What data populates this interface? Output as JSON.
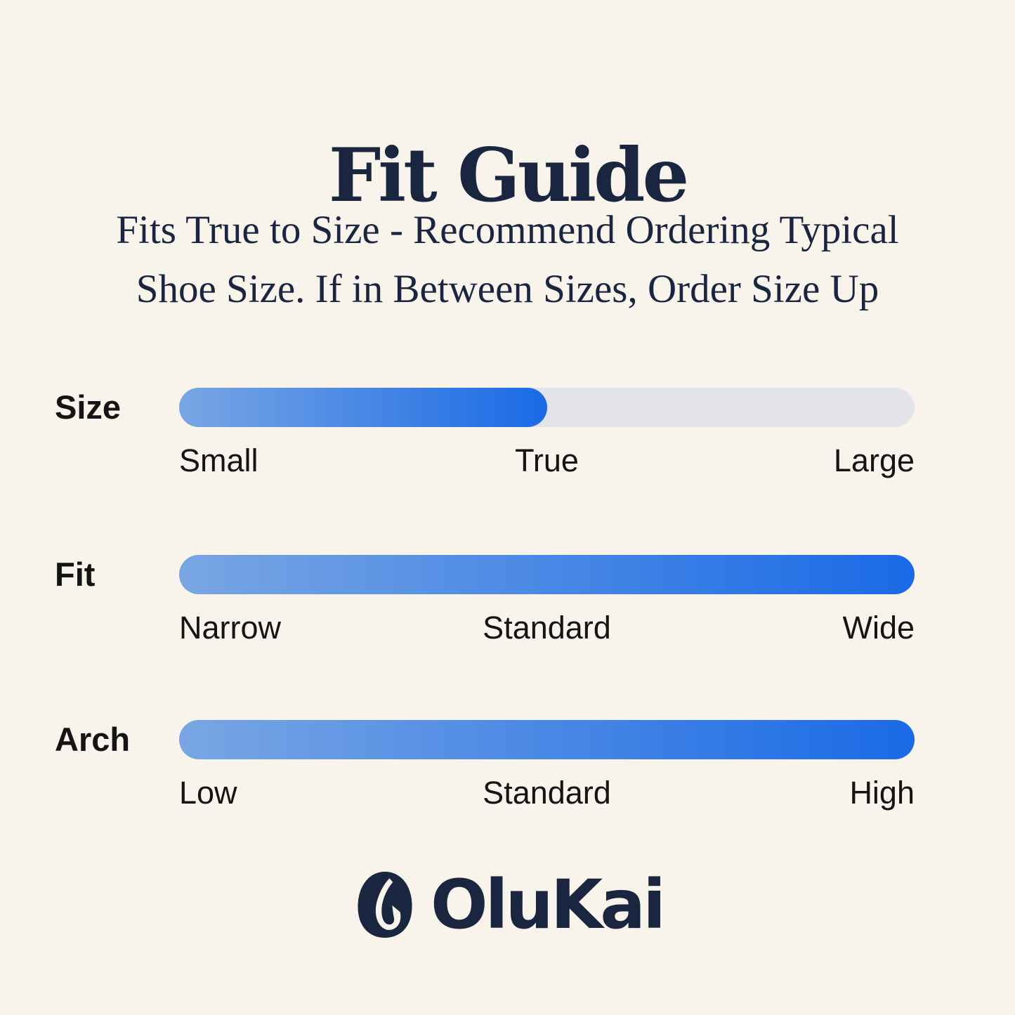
{
  "page": {
    "background_color": "#f8f4ec",
    "navy_color": "#1a2540",
    "label_color": "#141414",
    "title": "Fit Guide",
    "subtitle_line1": "Fits True to Size - Recommend Ordering Typical",
    "subtitle_line2": "Shoe Size. If in Between Sizes, Order Size Up"
  },
  "chart_data": {
    "type": "bar",
    "title": "Fit Guide",
    "orientation": "horizontal",
    "track_color": "#e2e4ea",
    "fill_gradient": [
      "#79a6e4",
      "#1a6ae6"
    ],
    "bars": [
      {
        "label": "Size",
        "fill_percent": 50,
        "value": "True",
        "scale_min": "Small",
        "scale_mid": "True",
        "scale_max": "Large"
      },
      {
        "label": "Fit",
        "fill_percent": 100,
        "value": "Wide",
        "scale_min": "Narrow",
        "scale_mid": "Standard",
        "scale_max": "Wide"
      },
      {
        "label": "Arch",
        "fill_percent": 100,
        "value": "High",
        "scale_min": "Low",
        "scale_mid": "Standard",
        "scale_max": "High"
      }
    ]
  },
  "logo": {
    "brand": "OluKai",
    "icon": "fish-hook-icon"
  }
}
